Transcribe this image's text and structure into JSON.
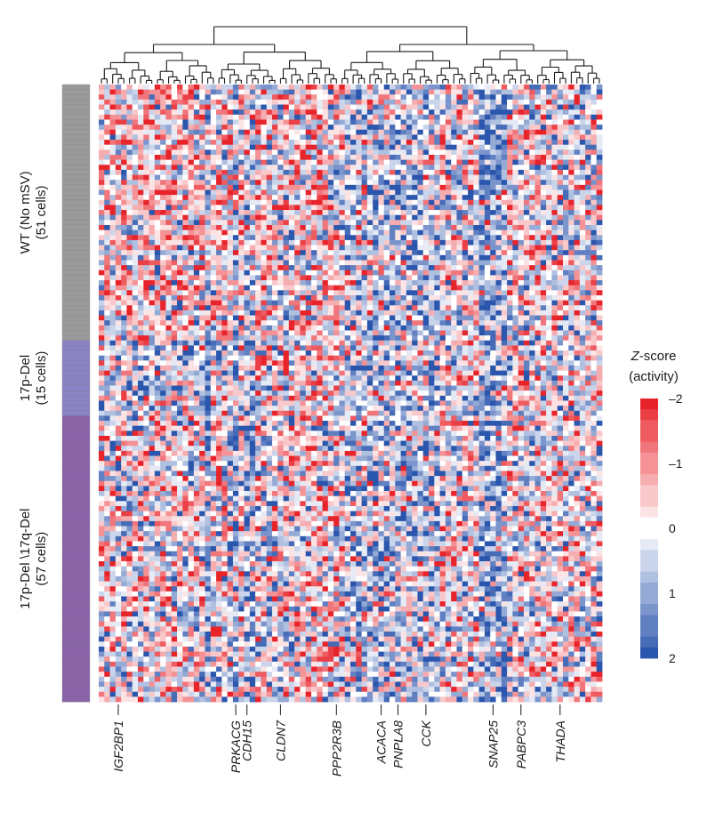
{
  "chart_data": {
    "type": "heatmap",
    "title": "",
    "row_groups": [
      {
        "lines": [
          "WT (No mSV)",
          "(51 cells)"
        ],
        "cells": 51,
        "color": "#9a9a9a"
      },
      {
        "lines": [
          "17p-Del",
          "(15 cells)"
        ],
        "cells": 15,
        "color": "#8a83c4"
      },
      {
        "lines": [
          "17p-Del \\17q-Del",
          "(57 cells)"
        ],
        "cells": 57,
        "color": "#8a63a8"
      }
    ],
    "n_columns": 90,
    "column_labels": [
      {
        "gene": "IGF2BP1",
        "column": 3
      },
      {
        "gene": "PRKACG",
        "column": 24
      },
      {
        "gene": "CDH15",
        "column": 26
      },
      {
        "gene": "CLDN7",
        "column": 32
      },
      {
        "gene": "PPP2R3B",
        "column": 42
      },
      {
        "gene": "ACACA",
        "column": 50
      },
      {
        "gene": "PNPLA8",
        "column": 53
      },
      {
        "gene": "CCK",
        "column": 58
      },
      {
        "gene": "SNAP25",
        "column": 70
      },
      {
        "gene": "PABPC3",
        "column": 75
      },
      {
        "gene": "THADA",
        "column": 82
      }
    ],
    "colorbar": {
      "title_italic": "Z",
      "title_rest": "-score",
      "title_line2": "(activity)",
      "ticks": [
        {
          "value": -2,
          "label": "–2"
        },
        {
          "value": -1,
          "label": "–1"
        },
        {
          "value": 0,
          "label": "0"
        },
        {
          "value": 1,
          "label": "1"
        },
        {
          "value": 2,
          "label": "2"
        }
      ],
      "range": [
        -2,
        2
      ],
      "color_low": "#e8242b",
      "color_mid": "#ffffff",
      "color_high": "#2b56ad"
    },
    "note": ""
  }
}
